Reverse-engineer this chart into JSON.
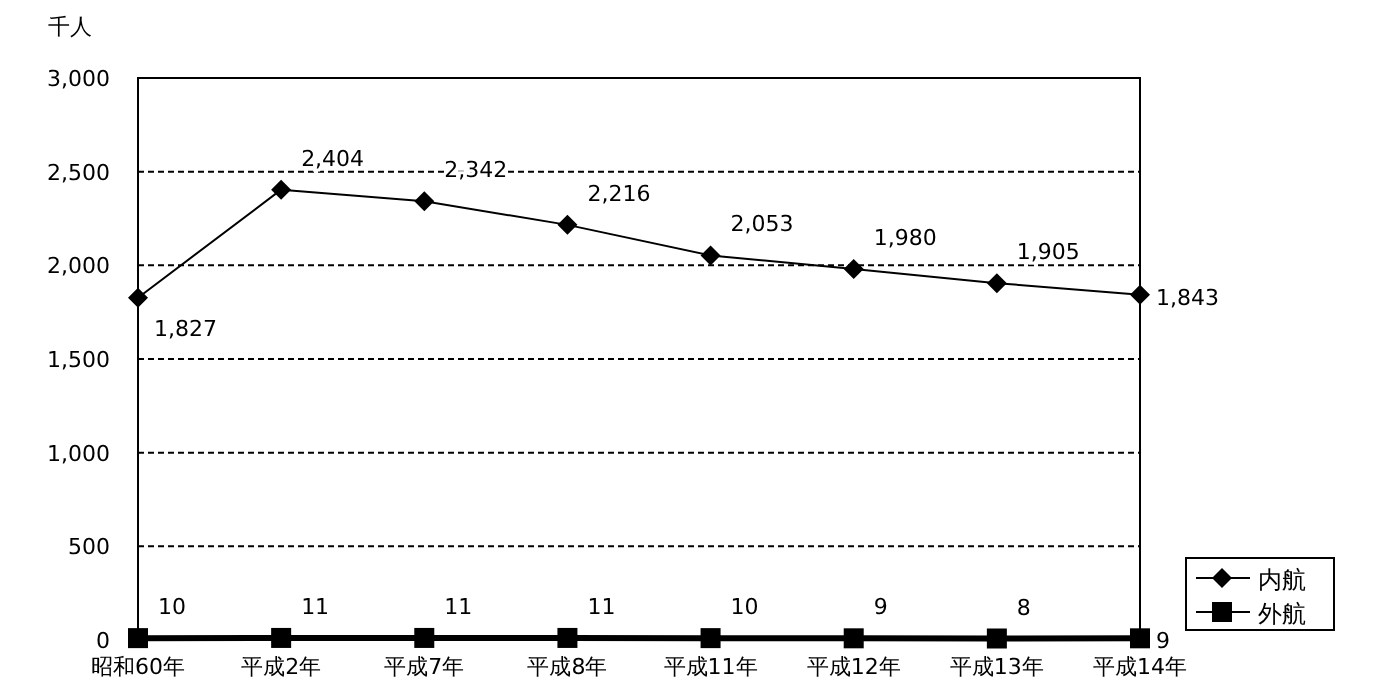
{
  "chart_data": {
    "type": "line",
    "ylabel": "千人",
    "categories": [
      "昭和60年",
      "平成2年",
      "平成7年",
      "平成8年",
      "平成11年",
      "平成12年",
      "平成13年",
      "平成14年"
    ],
    "series": [
      {
        "name": "内航",
        "color": "#000000",
        "marker": "diamond",
        "values": [
          1827,
          2404,
          2342,
          2216,
          2053,
          1980,
          1905,
          1843
        ],
        "value_labels": [
          "1,827",
          "2,404",
          "2,342",
          "2,216",
          "2,053",
          "1,980",
          "1,905",
          "1,843"
        ]
      },
      {
        "name": "外航",
        "color": "#000000",
        "marker": "square",
        "values": [
          10,
          11,
          11,
          11,
          10,
          9,
          8,
          9
        ],
        "value_labels": [
          "10",
          "11",
          "11",
          "11",
          "10",
          "9",
          "8",
          "9"
        ]
      }
    ],
    "ylim": [
      0,
      3000
    ],
    "yticks": [
      {
        "value": 0,
        "label": "0"
      },
      {
        "value": 500,
        "label": "500"
      },
      {
        "value": 1000,
        "label": "1,000"
      },
      {
        "value": 1500,
        "label": "1,500"
      },
      {
        "value": 2000,
        "label": "2,000"
      },
      {
        "value": 2500,
        "label": "2,500"
      },
      {
        "value": 3000,
        "label": "3,000"
      }
    ],
    "grid": "y",
    "legend": "right",
    "line_style": "solid"
  }
}
